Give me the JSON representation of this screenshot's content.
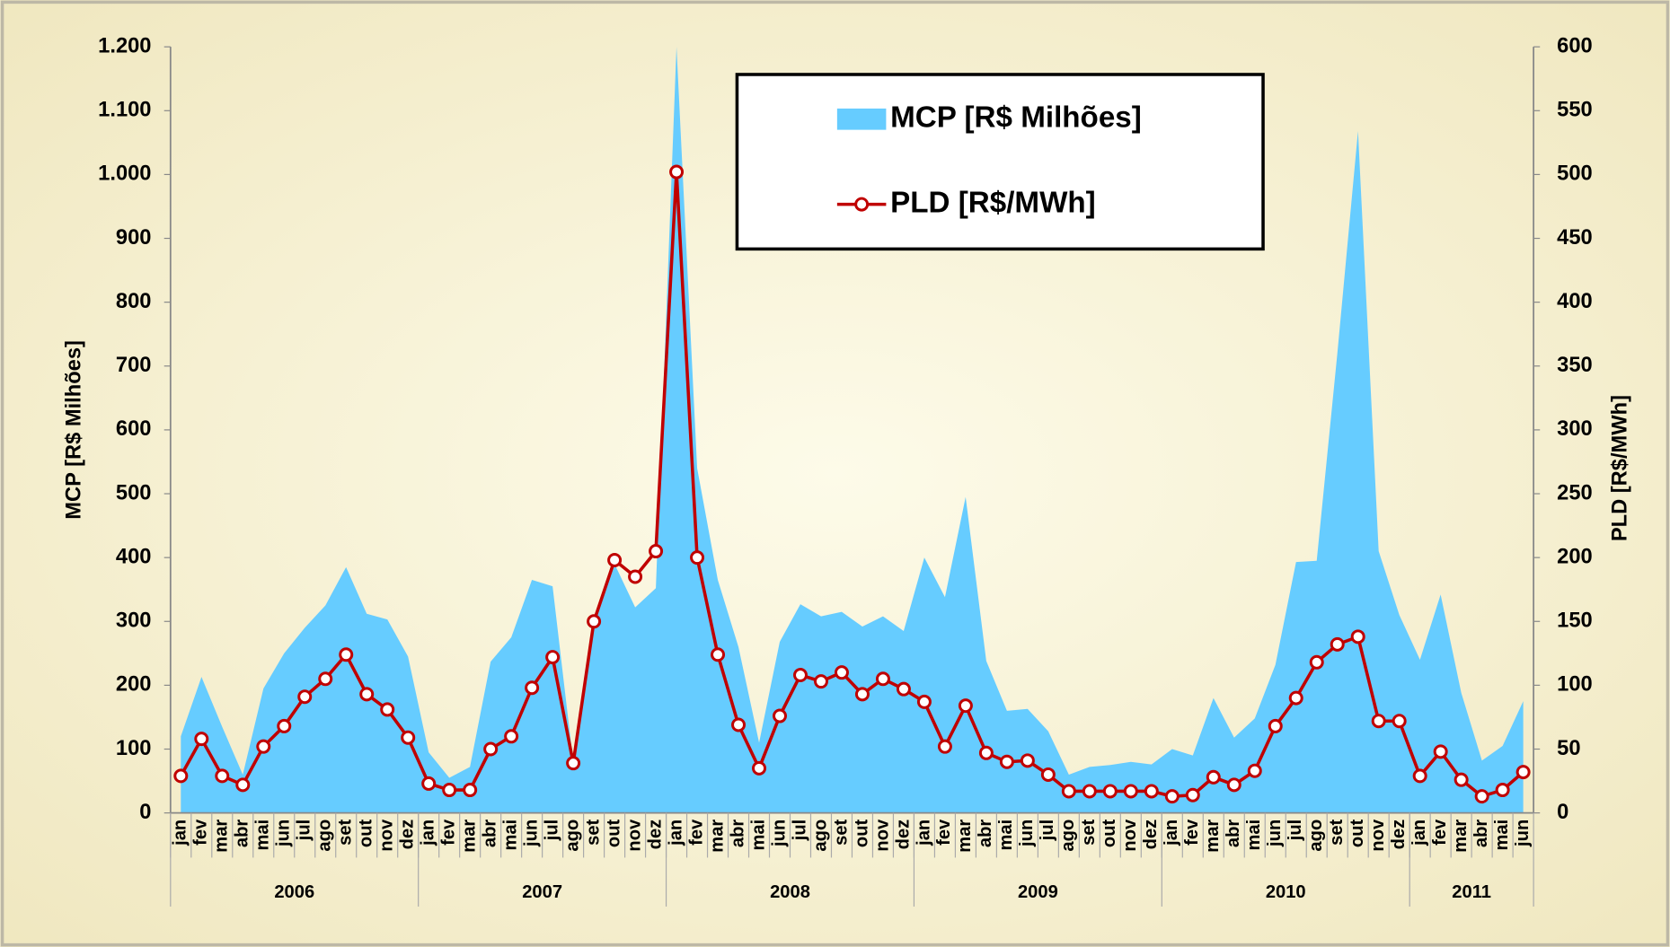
{
  "chart_data": {
    "type": "combo",
    "y_label": "MCP [R$ Milhões]",
    "y2_label": "PLD [R$/MWh]",
    "categories": [
      "jan",
      "fev",
      "mar",
      "abr",
      "mai",
      "jun",
      "jul",
      "ago",
      "set",
      "out",
      "nov",
      "dez",
      "jan",
      "fev",
      "mar",
      "abr",
      "mai",
      "jun",
      "jul",
      "ago",
      "set",
      "out",
      "nov",
      "dez",
      "jan",
      "fev",
      "mar",
      "abr",
      "mai",
      "jun",
      "jul",
      "ago",
      "set",
      "out",
      "nov",
      "dez",
      "jan",
      "fev",
      "mar",
      "abr",
      "mai",
      "jun",
      "jul",
      "ago",
      "set",
      "out",
      "nov",
      "dez",
      "jan",
      "fev",
      "mar",
      "abr",
      "mai",
      "jun",
      "jul",
      "ago",
      "set",
      "out",
      "nov",
      "dez",
      "jan",
      "fev",
      "mar",
      "abr",
      "mai",
      "jun"
    ],
    "groups": [
      {
        "label": "2006",
        "size": 12
      },
      {
        "label": "2007",
        "size": 12
      },
      {
        "label": "2008",
        "size": 12
      },
      {
        "label": "2009",
        "size": 12
      },
      {
        "label": "2010",
        "size": 12
      },
      {
        "label": "2011",
        "size": 6
      }
    ],
    "series": [
      {
        "name": "MCP [R$ Milhões]",
        "type": "area",
        "color": "#66ccff",
        "values": [
          120,
          213,
          135,
          60,
          195,
          250,
          290,
          325,
          385,
          312,
          303,
          245,
          95,
          55,
          72,
          237,
          275,
          365,
          355,
          80,
          300,
          390,
          322,
          352,
          1200,
          540,
          365,
          260,
          110,
          268,
          327,
          308,
          315,
          292,
          308,
          285,
          400,
          338,
          495,
          238,
          160,
          163,
          128,
          60,
          72,
          75,
          80,
          76,
          100,
          90,
          180,
          118,
          148,
          232,
          393,
          395,
          720,
          1068,
          410,
          310,
          240,
          342,
          188,
          82,
          105,
          175
        ]
      },
      {
        "name": "PLD [R$/MWh]",
        "type": "line",
        "axis": "y2",
        "color": "#c00000",
        "values": [
          29,
          58,
          29,
          22,
          52,
          68,
          91,
          105,
          124,
          93,
          81,
          59,
          23,
          18,
          18,
          50,
          60,
          98,
          122,
          39,
          150,
          198,
          185,
          205,
          502,
          200,
          124,
          69,
          35,
          76,
          108,
          103,
          110,
          93,
          105,
          97,
          87,
          52,
          84,
          47,
          40,
          41,
          30,
          17,
          17,
          17,
          17,
          17,
          13,
          14,
          28,
          22,
          33,
          68,
          90,
          118,
          132,
          138,
          72,
          72,
          29,
          48,
          26,
          13,
          18,
          32
        ]
      }
    ],
    "ylim": [
      0,
      1200
    ],
    "yticks": [
      0,
      100,
      200,
      300,
      400,
      500,
      600,
      700,
      800,
      900,
      {
        "value": 1000,
        "label": "1.000"
      },
      {
        "value": 1100,
        "label": "1.100"
      },
      {
        "value": 1200,
        "label": "1.200"
      }
    ],
    "y2lim": [
      0,
      600
    ],
    "y2ticks": [
      0,
      50,
      100,
      150,
      200,
      250,
      300,
      350,
      400,
      450,
      500,
      550,
      600
    ]
  }
}
